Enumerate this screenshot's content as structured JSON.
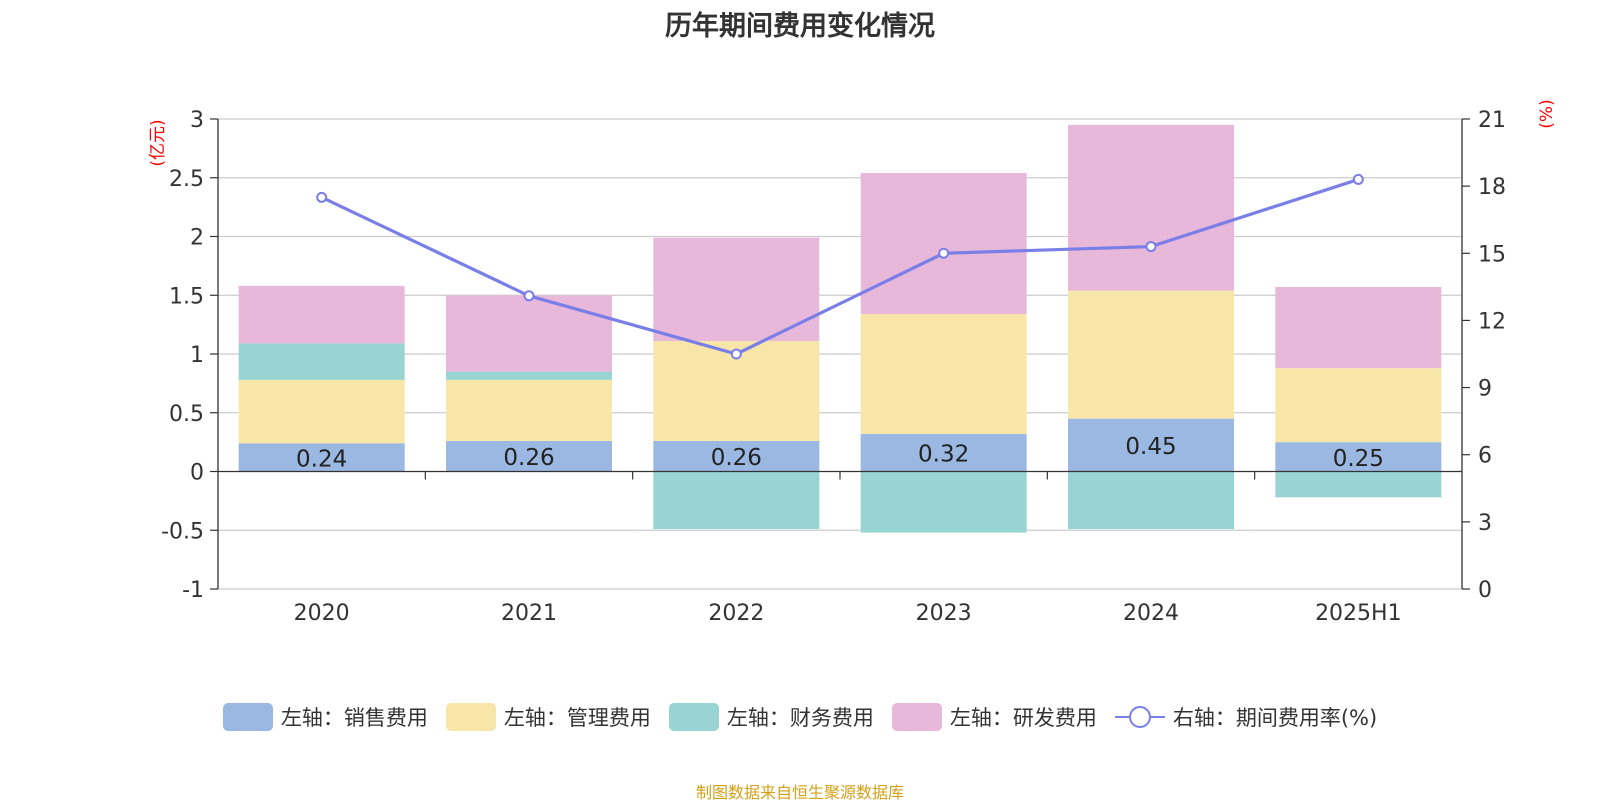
{
  "title": "历年期间费用变化情况",
  "source_note": "制图数据来自恒生聚源数据库",
  "chart_data": {
    "type": "bar",
    "stacked": true,
    "categories": [
      "2020",
      "2021",
      "2022",
      "2023",
      "2024",
      "2025H1"
    ],
    "left_axis": {
      "unit": "(亿元)",
      "ylim": [
        -1,
        3
      ],
      "ticks": [
        "3",
        "2.5",
        "2",
        "1.5",
        "1",
        "0.5",
        "0",
        "-0.5",
        "-1"
      ]
    },
    "right_axis": {
      "unit": "(%)",
      "ylim": [
        0,
        21
      ],
      "ticks": [
        "21",
        "18",
        "15",
        "12",
        "9",
        "6",
        "3",
        "0"
      ]
    },
    "series": [
      {
        "name": "左轴：销售费用",
        "color": "#9bb8e2",
        "values": [
          0.24,
          0.26,
          0.26,
          0.32,
          0.45,
          0.25
        ],
        "labels": [
          "0.24",
          "0.26",
          "0.26",
          "0.32",
          "0.45",
          "0.25"
        ]
      },
      {
        "name": "左轴：管理费用",
        "color": "#f8e6a8",
        "values": [
          0.54,
          0.52,
          0.85,
          1.02,
          1.09,
          0.63
        ]
      },
      {
        "name": "左轴：财务费用",
        "color": "#98d4d4",
        "values": [
          0.31,
          0.07,
          -0.49,
          -0.52,
          -0.49,
          -0.22
        ]
      },
      {
        "name": "左轴：研发费用",
        "color": "#e8b8da",
        "values": [
          0.49,
          0.65,
          0.88,
          1.2,
          1.41,
          0.69
        ]
      }
    ],
    "line_series": {
      "name": "右轴：期间费用率(%)",
      "color": "#7a7fe8",
      "values": [
        17.5,
        13.1,
        10.5,
        15.0,
        15.3,
        18.3
      ]
    },
    "grid": true,
    "legend_position": "bottom"
  }
}
